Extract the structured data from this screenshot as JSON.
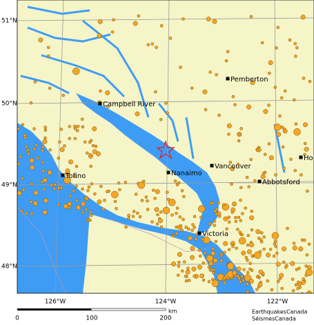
{
  "map": {
    "lat_labels": [
      "51°N",
      "50°N",
      "49°N",
      "48°N"
    ],
    "lon_labels": [
      "126°W",
      "124°W",
      "122°W"
    ],
    "cities": [
      {
        "label": "Pemberton"
      },
      {
        "label": "Campbell River"
      },
      {
        "label": "Vancouver"
      },
      {
        "label": "Nanaimo"
      },
      {
        "label": "Abbotsford"
      },
      {
        "label": "Victoria"
      },
      {
        "label": "Tofino"
      },
      {
        "label": "Ho"
      }
    ],
    "scale": {
      "labels": [
        0,
        100,
        200
      ],
      "unit": "km"
    },
    "credits": [
      "EarthquakesCanada",
      "SéismesCanada"
    ]
  }
}
